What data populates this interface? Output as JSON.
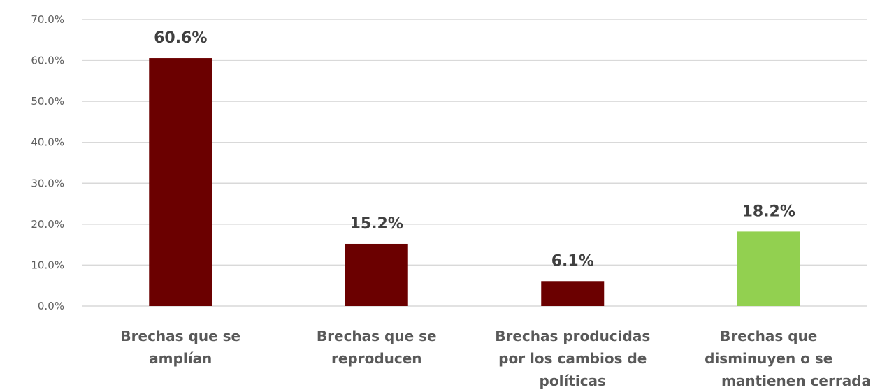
{
  "chart_data": {
    "type": "bar",
    "categories": [
      [
        "Brechas que se",
        "amplían"
      ],
      [
        "Brechas que se",
        "reproducen"
      ],
      [
        "Brechas producidas",
        "por los cambios de",
        "políticas"
      ],
      [
        "Brechas que",
        "disminuyen o se",
        "mantienen cerrada"
      ]
    ],
    "values": [
      60.6,
      15.2,
      6.1,
      18.2
    ],
    "data_labels": [
      "60.6%",
      "15.2%",
      "6.1%",
      "18.2%"
    ],
    "bar_colors": [
      "#6b0000",
      "#6b0000",
      "#6b0000",
      "#92d050"
    ],
    "y_ticks": [
      "0.0%",
      "10.0%",
      "20.0%",
      "30.0%",
      "40.0%",
      "50.0%",
      "60.0%",
      "70.0%"
    ],
    "ylim": [
      0,
      70
    ],
    "grid": true,
    "title": "",
    "xlabel": "",
    "ylabel": ""
  }
}
